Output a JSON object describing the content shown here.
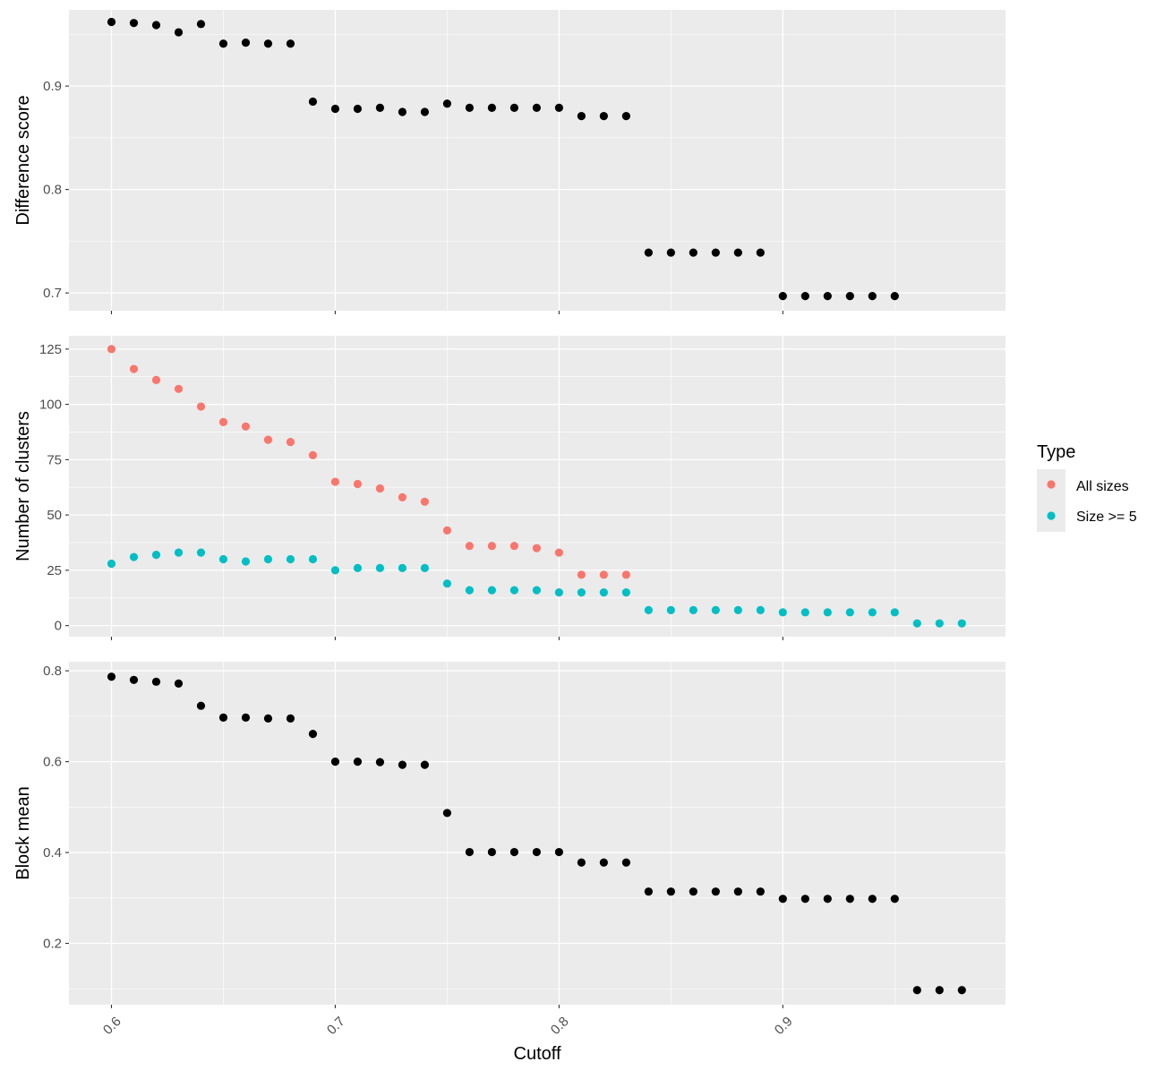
{
  "chart_data": {
    "type": "scatter",
    "xlabel": "Cutoff",
    "x_ticks": [
      0.6,
      0.7,
      0.8,
      0.9
    ],
    "x_tick_labels": [
      "0.6",
      "0.7",
      "0.8",
      "0.9"
    ],
    "xlim": [
      0.581,
      0.9995
    ],
    "grid": true,
    "legend": {
      "title": "Type",
      "placement": "right",
      "entries": [
        {
          "label": "All sizes",
          "color": "#F8766D"
        },
        {
          "label": "Size >= 5",
          "color": "#00BFC4"
        }
      ]
    },
    "panels": [
      {
        "id": "difference",
        "ylabel": "Difference score",
        "ylim": [
          0.6828,
          0.9737
        ],
        "y_ticks": [
          0.7,
          0.8,
          0.9
        ],
        "y_tick_labels": [
          "0.7",
          "0.8",
          "0.9"
        ],
        "series": [
          {
            "color": "#000000",
            "x": [
              0.6,
              0.61,
              0.62,
              0.63,
              0.64,
              0.65,
              0.66,
              0.67,
              0.68,
              0.69,
              0.7,
              0.71,
              0.72,
              0.73,
              0.74,
              0.75,
              0.76,
              0.77,
              0.78,
              0.79,
              0.8,
              0.81,
              0.82,
              0.83,
              0.84,
              0.85,
              0.86,
              0.87,
              0.88,
              0.89,
              0.9,
              0.91,
              0.92,
              0.93,
              0.94,
              0.95
            ],
            "y": [
              0.962,
              0.961,
              0.959,
              0.952,
              0.96,
              0.941,
              0.942,
              0.941,
              0.941,
              0.885,
              0.878,
              0.878,
              0.879,
              0.875,
              0.875,
              0.883,
              0.879,
              0.879,
              0.879,
              0.879,
              0.879,
              0.871,
              0.871,
              0.871,
              0.739,
              0.739,
              0.739,
              0.739,
              0.739,
              0.739,
              0.697,
              0.697,
              0.697,
              0.697,
              0.697,
              0.697
            ]
          }
        ]
      },
      {
        "id": "clusters",
        "ylabel": "Number of clusters",
        "ylim": [
          -5,
          131
        ],
        "y_ticks": [
          0,
          25,
          50,
          75,
          100,
          125
        ],
        "y_tick_labels": [
          "0",
          "25",
          "50",
          "75",
          "100",
          "125"
        ],
        "series": [
          {
            "name": "All sizes",
            "color": "#F8766D",
            "x": [
              0.6,
              0.61,
              0.62,
              0.63,
              0.64,
              0.65,
              0.66,
              0.67,
              0.68,
              0.69,
              0.7,
              0.71,
              0.72,
              0.73,
              0.74,
              0.75,
              0.76,
              0.77,
              0.78,
              0.79,
              0.8,
              0.81,
              0.82,
              0.83
            ],
            "y": [
              125,
              116,
              111,
              107,
              99,
              92,
              90,
              84,
              83,
              77,
              65,
              64,
              62,
              58,
              56,
              43,
              36,
              36,
              36,
              35,
              33,
              23,
              23,
              23
            ]
          },
          {
            "name": "Size >= 5",
            "color": "#00BFC4",
            "x": [
              0.6,
              0.61,
              0.62,
              0.63,
              0.64,
              0.65,
              0.66,
              0.67,
              0.68,
              0.69,
              0.7,
              0.71,
              0.72,
              0.73,
              0.74,
              0.75,
              0.76,
              0.77,
              0.78,
              0.79,
              0.8,
              0.81,
              0.82,
              0.83,
              0.84,
              0.85,
              0.86,
              0.87,
              0.88,
              0.89,
              0.9,
              0.91,
              0.92,
              0.93,
              0.94,
              0.95,
              0.96,
              0.97,
              0.98
            ],
            "y": [
              28,
              31,
              32,
              33,
              33,
              30,
              29,
              30,
              30,
              30,
              25,
              26,
              26,
              26,
              26,
              19,
              16,
              16,
              16,
              16,
              15,
              15,
              15,
              15,
              7,
              7,
              7,
              7,
              7,
              7,
              6,
              6,
              6,
              6,
              6,
              6,
              1,
              1,
              1
            ]
          }
        ]
      },
      {
        "id": "block",
        "ylabel": "Block mean",
        "ylim": [
          0.065,
          0.82
        ],
        "y_ticks": [
          0.2,
          0.4,
          0.6,
          0.8
        ],
        "y_tick_labels": [
          "0.2",
          "0.4",
          "0.6",
          "0.8"
        ],
        "series": [
          {
            "color": "#000000",
            "x": [
              0.6,
              0.61,
              0.62,
              0.63,
              0.64,
              0.65,
              0.66,
              0.67,
              0.68,
              0.69,
              0.7,
              0.71,
              0.72,
              0.73,
              0.74,
              0.75,
              0.76,
              0.77,
              0.78,
              0.79,
              0.8,
              0.81,
              0.82,
              0.83,
              0.84,
              0.85,
              0.86,
              0.87,
              0.88,
              0.89,
              0.9,
              0.91,
              0.92,
              0.93,
              0.94,
              0.95,
              0.96,
              0.97,
              0.98
            ],
            "y": [
              0.787,
              0.78,
              0.776,
              0.772,
              0.723,
              0.697,
              0.697,
              0.695,
              0.695,
              0.661,
              0.6,
              0.6,
              0.599,
              0.593,
              0.593,
              0.487,
              0.401,
              0.401,
              0.401,
              0.401,
              0.401,
              0.378,
              0.378,
              0.378,
              0.314,
              0.314,
              0.314,
              0.314,
              0.314,
              0.314,
              0.298,
              0.298,
              0.298,
              0.298,
              0.298,
              0.298,
              0.097,
              0.097,
              0.097
            ]
          }
        ]
      }
    ]
  }
}
